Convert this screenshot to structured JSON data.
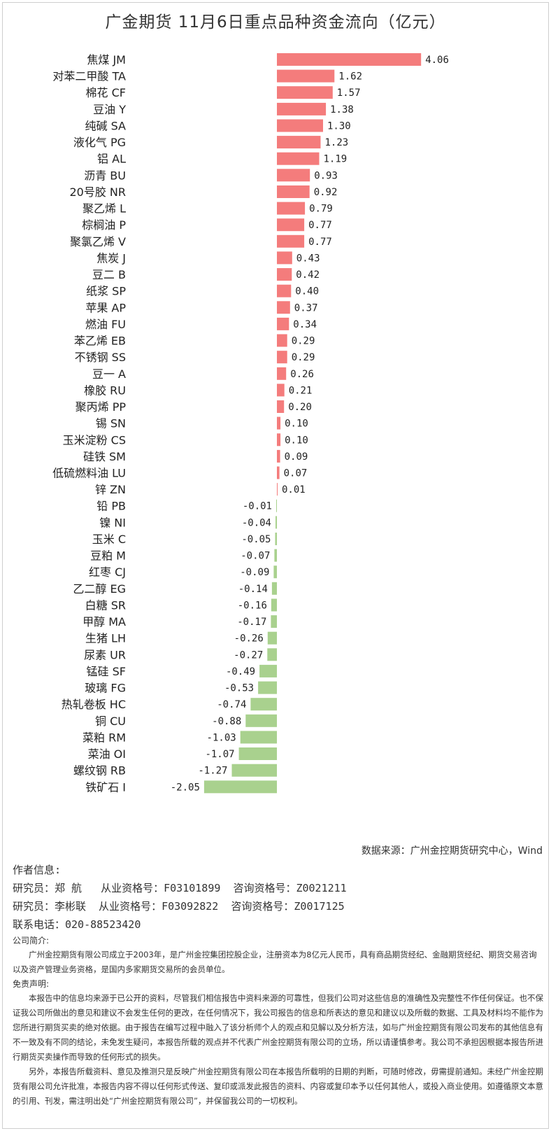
{
  "title": "广金期货 11月6日重点品种资金流向（亿元）",
  "chart_data": {
    "type": "bar",
    "orientation": "horizontal",
    "categories": [
      "焦煤 JM",
      "对苯二甲酸 TA",
      "棉花 CF",
      "豆油 Y",
      "纯碱 SA",
      "液化气 PG",
      "铝 AL",
      "沥青 BU",
      "20号胶 NR",
      "聚乙烯 L",
      "棕榈油 P",
      "聚氯乙烯 V",
      "焦炭 J",
      "豆二 B",
      "纸浆 SP",
      "苹果 AP",
      "燃油 FU",
      "苯乙烯 EB",
      "不锈钢 SS",
      "豆一 A",
      "橡胶 RU",
      "聚丙烯 PP",
      "锡 SN",
      "玉米淀粉 CS",
      "硅铁 SM",
      "低硫燃料油 LU",
      "锌 ZN",
      "铅 PB",
      "镍 NI",
      "玉米 C",
      "豆粕 M",
      "红枣 CJ",
      "乙二醇 EG",
      "白糖 SR",
      "甲醇 MA",
      "生猪 LH",
      "尿素 UR",
      "锰硅 SF",
      "玻璃 FG",
      "热轧卷板 HC",
      "铜 CU",
      "菜粕 RM",
      "菜油 OI",
      "螺纹钢 RB",
      "铁矿石 I"
    ],
    "values": [
      4.06,
      1.62,
      1.57,
      1.38,
      1.3,
      1.23,
      1.19,
      0.93,
      0.92,
      0.79,
      0.77,
      0.77,
      0.43,
      0.42,
      0.4,
      0.37,
      0.34,
      0.29,
      0.29,
      0.26,
      0.21,
      0.2,
      0.1,
      0.1,
      0.09,
      0.07,
      0.01,
      -0.01,
      -0.04,
      -0.05,
      -0.07,
      -0.09,
      -0.14,
      -0.16,
      -0.17,
      -0.26,
      -0.27,
      -0.49,
      -0.53,
      -0.74,
      -0.88,
      -1.03,
      -1.07,
      -1.27,
      -2.05
    ],
    "value_labels": [
      "4.06",
      "1.62",
      "1.57",
      "1.38",
      "1.30",
      "1.23",
      "1.19",
      "0.93",
      "0.92",
      "0.79",
      "0.77",
      "0.77",
      "0.43",
      "0.42",
      "0.40",
      "0.37",
      "0.34",
      "0.29",
      "0.29",
      "0.26",
      "0.21",
      "0.20",
      "0.10",
      "0.10",
      "0.09",
      "0.07",
      "0.01",
      "-0.01",
      "-0.04",
      "-0.05",
      "-0.07",
      "-0.09",
      "-0.14",
      "-0.16",
      "-0.17",
      "-0.26",
      "-0.27",
      "-0.49",
      "-0.53",
      "-0.74",
      "-0.88",
      "-1.03",
      "-1.07",
      "-1.27",
      "-2.05"
    ],
    "positive_color": "#f47c7c",
    "negative_color": "#a9d18e",
    "xlim": [
      -2.05,
      4.06
    ],
    "grid": false,
    "legend": "none"
  },
  "source": "数据来源：广州金控期货研究中心，Wind",
  "footer": {
    "author_heading": "作者信息:",
    "researchers": [
      "研究员：郑 航   从业资格号：F03101899  咨询资格号：Z0021211",
      "研究员：李彬联  从业资格号：F03092822  咨询资格号：Z0017125"
    ],
    "phone": "联系电话：020-88523420",
    "company_heading": "公司简介:",
    "company_text": "广州金控期货有限公司成立于2003年，是广州金控集团控股企业，注册资本为8亿元人民币，具有商品期货经纪、金融期货经纪、期货交易咨询以及资产管理业务资格，是国内多家期货交易所的会员单位。",
    "disclaimer_heading": "免责声明:",
    "disclaimer_1": "本报告中的信息均来源于已公开的资料，尽管我们相信报告中资料来源的可靠性，但我们公司对这些信息的准确性及完整性不作任何保证。也不保证我公司所做出的意见和建议不会发生任何的更改，在任何情况下，我公司报告的信息和所表达的意见和建议以及所载的数据、工具及材料均不能作为您所进行期货买卖的绝对依据。由于报告在编写过程中融入了该分析师个人的观点和见解以及分析方法，如与广州金控期货有限公司发布的其他信息有不一致及有不同的结论，未免发生疑问，本报告所载的观点并不代表广州金控期货有限公司的立场，所以请谨慎参考。我公司不承担因根据本报告所进行期货买卖操作而导致的任何形式的损失。",
    "disclaimer_2": "另外，本报告所载资料、意见及推测只是反映广州金控期货有限公司在本报告所载明的日期的判断，可随时修改，毋需提前通知。未经广州金控期货有限公司允许批准，本报告内容不得以任何形式传送、复印或派发此报告的资料、内容或复印本予以任何其他人，或投入商业使用。如遵循原文本意的引用、刊发，需注明出处“广州金控期货有限公司”，并保留我公司的一切权利。"
  }
}
